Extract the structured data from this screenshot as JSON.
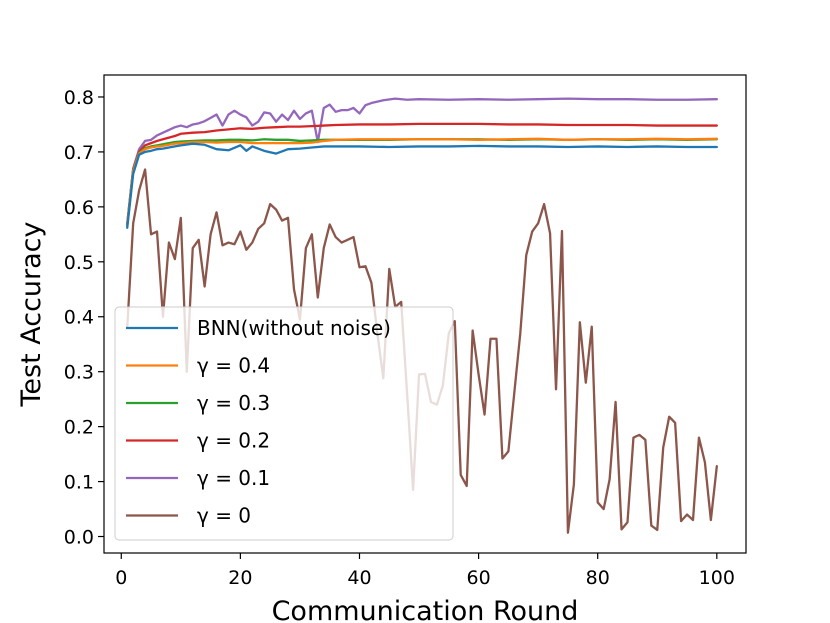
{
  "chart_data": {
    "type": "line",
    "title": "",
    "xlabel": "Communication Round",
    "ylabel": "Test Accuracy",
    "xlim": [
      -2.9,
      104.9
    ],
    "ylim": [
      -0.03,
      0.84
    ],
    "xticks": [
      0,
      20,
      40,
      60,
      80,
      100
    ],
    "yticks": [
      0.0,
      0.1,
      0.2,
      0.3,
      0.4,
      0.5,
      0.6,
      0.7,
      0.8
    ],
    "xtick_labels": [
      "0",
      "20",
      "40",
      "60",
      "80",
      "100"
    ],
    "ytick_labels": [
      "0.0",
      "0.1",
      "0.2",
      "0.3",
      "0.4",
      "0.5",
      "0.6",
      "0.7",
      "0.8"
    ],
    "grid": false,
    "legend_position": "lower-left",
    "series": [
      {
        "name": "BNN(without noise)",
        "color": "#1f77b4",
        "x": [
          1,
          2,
          3,
          4,
          5,
          6,
          7,
          8,
          9,
          10,
          12,
          14,
          16,
          18,
          20,
          21,
          22,
          24,
          26,
          28,
          30,
          32,
          34,
          36,
          40,
          45,
          50,
          55,
          60,
          65,
          70,
          75,
          80,
          85,
          90,
          95,
          100
        ],
        "y": [
          0.562,
          0.66,
          0.695,
          0.7,
          0.702,
          0.705,
          0.706,
          0.708,
          0.71,
          0.712,
          0.715,
          0.713,
          0.705,
          0.703,
          0.712,
          0.702,
          0.71,
          0.702,
          0.697,
          0.705,
          0.706,
          0.708,
          0.71,
          0.71,
          0.71,
          0.709,
          0.71,
          0.71,
          0.711,
          0.71,
          0.71,
          0.709,
          0.71,
          0.709,
          0.71,
          0.709,
          0.709
        ]
      },
      {
        "name": "γ = 0.4",
        "color": "#ff7f0e",
        "x": [
          1,
          2,
          3,
          4,
          5,
          6,
          7,
          8,
          9,
          10,
          12,
          14,
          16,
          18,
          20,
          22,
          24,
          26,
          28,
          30,
          32,
          34,
          36,
          40,
          45,
          50,
          55,
          60,
          65,
          70,
          75,
          80,
          85,
          90,
          95,
          100
        ],
        "y": [
          0.565,
          0.665,
          0.697,
          0.705,
          0.708,
          0.71,
          0.711,
          0.713,
          0.715,
          0.716,
          0.718,
          0.718,
          0.717,
          0.718,
          0.718,
          0.716,
          0.716,
          0.716,
          0.716,
          0.716,
          0.717,
          0.72,
          0.722,
          0.723,
          0.723,
          0.723,
          0.723,
          0.722,
          0.723,
          0.724,
          0.722,
          0.723,
          0.723,
          0.724,
          0.723,
          0.724
        ]
      },
      {
        "name": "γ = 0.3",
        "color": "#2ca02c",
        "x": [
          1,
          2,
          3,
          4,
          5,
          6,
          7,
          8,
          9,
          10,
          12,
          14,
          16,
          18,
          20,
          22,
          24,
          26,
          28,
          30,
          32,
          34,
          36,
          40,
          45,
          50,
          55,
          60,
          65,
          70,
          75,
          80,
          85,
          90,
          95,
          100
        ],
        "y": [
          0.567,
          0.667,
          0.698,
          0.707,
          0.71,
          0.712,
          0.714,
          0.716,
          0.718,
          0.719,
          0.72,
          0.721,
          0.721,
          0.722,
          0.722,
          0.721,
          0.723,
          0.722,
          0.722,
          0.72,
          0.721,
          0.722,
          0.722,
          0.722,
          0.722,
          0.723,
          0.723,
          0.723,
          0.722,
          0.723,
          0.722,
          0.723,
          0.722,
          0.723,
          0.722,
          0.723
        ]
      },
      {
        "name": "γ = 0.2",
        "color": "#d62728",
        "x": [
          1,
          2,
          3,
          4,
          5,
          6,
          7,
          8,
          9,
          10,
          12,
          14,
          16,
          18,
          20,
          22,
          24,
          26,
          28,
          30,
          32,
          34,
          36,
          40,
          45,
          50,
          55,
          60,
          65,
          70,
          75,
          80,
          85,
          90,
          95,
          100
        ],
        "y": [
          0.568,
          0.668,
          0.7,
          0.712,
          0.716,
          0.72,
          0.723,
          0.726,
          0.729,
          0.733,
          0.735,
          0.736,
          0.739,
          0.741,
          0.743,
          0.742,
          0.744,
          0.745,
          0.746,
          0.746,
          0.747,
          0.748,
          0.749,
          0.75,
          0.75,
          0.751,
          0.751,
          0.751,
          0.75,
          0.75,
          0.749,
          0.749,
          0.749,
          0.748,
          0.748,
          0.748
        ]
      },
      {
        "name": "γ = 0.1",
        "color": "#9467bd",
        "x": [
          1,
          2,
          3,
          4,
          5,
          6,
          7,
          8,
          9,
          10,
          11,
          12,
          13,
          14,
          15,
          16,
          17,
          18,
          19,
          20,
          21,
          22,
          23,
          24,
          25,
          26,
          27,
          28,
          29,
          30,
          31,
          32,
          33,
          34,
          35,
          36,
          37,
          38,
          39,
          40,
          41,
          42,
          44,
          46,
          48,
          50,
          55,
          60,
          65,
          70,
          75,
          80,
          85,
          90,
          95,
          100
        ],
        "y": [
          0.57,
          0.67,
          0.705,
          0.72,
          0.722,
          0.73,
          0.735,
          0.74,
          0.745,
          0.748,
          0.745,
          0.75,
          0.752,
          0.756,
          0.762,
          0.768,
          0.748,
          0.768,
          0.775,
          0.768,
          0.763,
          0.748,
          0.755,
          0.772,
          0.77,
          0.755,
          0.768,
          0.758,
          0.775,
          0.76,
          0.77,
          0.775,
          0.718,
          0.78,
          0.786,
          0.773,
          0.776,
          0.776,
          0.78,
          0.77,
          0.785,
          0.789,
          0.794,
          0.797,
          0.795,
          0.796,
          0.795,
          0.796,
          0.795,
          0.796,
          0.797,
          0.796,
          0.796,
          0.795,
          0.795,
          0.796
        ]
      },
      {
        "name": "γ = 0",
        "color": "#8c564b",
        "x": [
          1,
          2,
          3,
          4,
          5,
          6,
          7,
          8,
          9,
          10,
          11,
          12,
          13,
          14,
          15,
          16,
          17,
          18,
          19,
          20,
          21,
          22,
          23,
          24,
          25,
          26,
          27,
          28,
          29,
          30,
          31,
          32,
          33,
          34,
          35,
          36,
          37,
          38,
          39,
          40,
          41,
          42,
          43,
          44,
          45,
          46,
          47,
          48,
          49,
          50,
          51,
          52,
          53,
          54,
          55,
          56,
          57,
          58,
          59,
          60,
          61,
          62,
          63,
          64,
          65,
          66,
          67,
          68,
          69,
          70,
          71,
          72,
          73,
          74,
          75,
          76,
          77,
          78,
          79,
          80,
          81,
          82,
          83,
          84,
          85,
          86,
          87,
          88,
          89,
          90,
          91,
          92,
          93,
          94,
          95,
          96,
          97,
          98,
          99,
          100
        ],
        "y": [
          0.38,
          0.57,
          0.63,
          0.668,
          0.55,
          0.555,
          0.4,
          0.535,
          0.505,
          0.58,
          0.3,
          0.525,
          0.54,
          0.455,
          0.55,
          0.59,
          0.53,
          0.535,
          0.532,
          0.555,
          0.522,
          0.535,
          0.56,
          0.57,
          0.605,
          0.595,
          0.575,
          0.58,
          0.45,
          0.395,
          0.525,
          0.55,
          0.435,
          0.525,
          0.568,
          0.545,
          0.535,
          0.54,
          0.545,
          0.49,
          0.492,
          0.462,
          0.37,
          0.288,
          0.487,
          0.418,
          0.427,
          0.26,
          0.085,
          0.295,
          0.296,
          0.245,
          0.24,
          0.275,
          0.37,
          0.392,
          0.112,
          0.092,
          0.375,
          0.295,
          0.222,
          0.36,
          0.36,
          0.142,
          0.155,
          0.262,
          0.37,
          0.512,
          0.555,
          0.57,
          0.605,
          0.552,
          0.268,
          0.556,
          0.007,
          0.095,
          0.39,
          0.28,
          0.382,
          0.062,
          0.05,
          0.104,
          0.245,
          0.013,
          0.026,
          0.18,
          0.185,
          0.176,
          0.02,
          0.012,
          0.162,
          0.218,
          0.207,
          0.028,
          0.04,
          0.03,
          0.18,
          0.135,
          0.03,
          0.128
        ]
      }
    ]
  }
}
